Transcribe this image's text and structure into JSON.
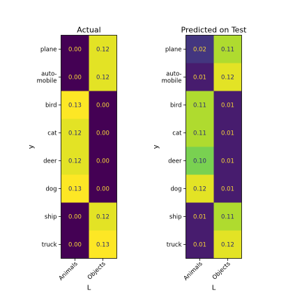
{
  "chart_data": [
    {
      "type": "heatmap",
      "title": "Actual",
      "xlabel": "L",
      "ylabel": "y",
      "x_categories": [
        "Animals",
        "Objects"
      ],
      "y_categories": [
        "plane",
        "auto-\nmobile",
        "bird",
        "cat",
        "deer",
        "dog",
        "ship",
        "truck"
      ],
      "values": [
        [
          0.0,
          0.12
        ],
        [
          0.0,
          0.12
        ],
        [
          0.13,
          0.0
        ],
        [
          0.12,
          0.0
        ],
        [
          0.12,
          0.0
        ],
        [
          0.13,
          0.0
        ],
        [
          0.0,
          0.12
        ],
        [
          0.0,
          0.13
        ]
      ],
      "value_labels": [
        [
          "0.00",
          "0.12"
        ],
        [
          "0.00",
          "0.12"
        ],
        [
          "0.13",
          "0.00"
        ],
        [
          "0.12",
          "0.00"
        ],
        [
          "0.12",
          "0.00"
        ],
        [
          "0.13",
          "0.00"
        ],
        [
          "0.00",
          "0.12"
        ],
        [
          "0.00",
          "0.13"
        ]
      ],
      "colormap": "viridis",
      "vmin": 0.0,
      "vmax": 0.125
    },
    {
      "type": "heatmap",
      "title": "Predicted on Test",
      "xlabel": "L",
      "ylabel": "y",
      "x_categories": [
        "Animals",
        "Objects"
      ],
      "y_categories": [
        "plane",
        "auto-\nmobile",
        "bird",
        "cat",
        "deer",
        "dog",
        "ship",
        "truck"
      ],
      "values": [
        [
          0.02,
          0.11
        ],
        [
          0.01,
          0.12
        ],
        [
          0.11,
          0.01
        ],
        [
          0.11,
          0.01
        ],
        [
          0.1,
          0.01
        ],
        [
          0.12,
          0.01
        ],
        [
          0.01,
          0.11
        ],
        [
          0.01,
          0.12
        ]
      ],
      "value_labels": [
        [
          "0.02",
          "0.11"
        ],
        [
          "0.01",
          "0.12"
        ],
        [
          "0.11",
          "0.01"
        ],
        [
          "0.11",
          "0.01"
        ],
        [
          "0.10",
          "0.01"
        ],
        [
          "0.12",
          "0.01"
        ],
        [
          "0.01",
          "0.11"
        ],
        [
          "0.01",
          "0.12"
        ]
      ],
      "colormap": "viridis",
      "vmin": 0.0,
      "vmax": 0.125
    }
  ],
  "colors": {
    "label_on_dark": "#f5d33a",
    "label_on_light": "#2d2d6b"
  }
}
